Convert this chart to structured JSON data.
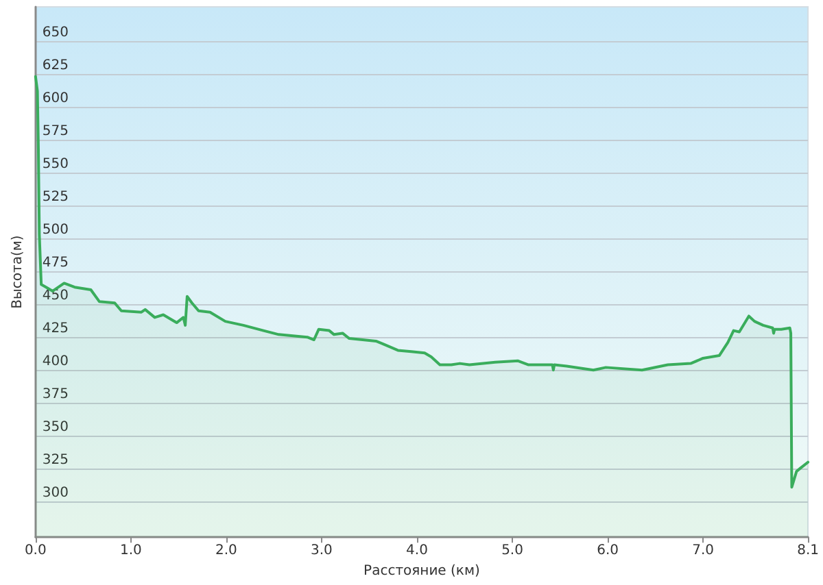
{
  "chart_data": {
    "type": "area",
    "xlabel": "Расстояние (км)",
    "ylabel": "Высота(м)",
    "x": [
      0,
      0.02,
      0.03,
      0.04,
      0.06,
      0.11,
      0.18,
      0.3,
      0.41,
      0.58,
      0.67,
      0.83,
      0.9,
      1.11,
      1.15,
      1.25,
      1.34,
      1.48,
      1.55,
      1.57,
      1.59,
      1.64,
      1.71,
      1.83,
      1.99,
      2.18,
      2.39,
      2.55,
      2.85,
      2.92,
      2.97,
      3.08,
      3.13,
      3.22,
      3.29,
      3.57,
      3.64,
      3.8,
      3.94,
      4.08,
      4.15,
      4.24,
      4.36,
      4.45,
      4.55,
      4.82,
      5.06,
      5.17,
      5.42,
      5.43,
      5.44,
      5.57,
      5.85,
      5.98,
      6.36,
      6.63,
      6.87,
      7,
      7.17,
      7.26,
      7.32,
      7.38,
      7.48,
      7.54,
      7.63,
      7.73,
      7.74,
      7.75,
      7.82,
      7.91,
      7.92,
      7.93,
      7.98,
      8.03,
      8.1
    ],
    "values": [
      623,
      612,
      568,
      503,
      465,
      463,
      460,
      466,
      463,
      461,
      452,
      451,
      445,
      444,
      446,
      440,
      442,
      436,
      440,
      434,
      456,
      451,
      445,
      444,
      437,
      434,
      430,
      427,
      425,
      423,
      431,
      430,
      427,
      428,
      424,
      422,
      420,
      415,
      414,
      413,
      410,
      404,
      404,
      405,
      404,
      406,
      407,
      404,
      404,
      400,
      404,
      403,
      400,
      402,
      400,
      404,
      405,
      409,
      411,
      421,
      430,
      429,
      441,
      437,
      434,
      432,
      428,
      431,
      431,
      432,
      428,
      311,
      323,
      326,
      330
    ],
    "color": "#3aad5c",
    "xlim": [
      0,
      8.1
    ],
    "xticks": [
      {
        "value": 0,
        "label": "0.0"
      },
      {
        "value": 1,
        "label": "1.0"
      },
      {
        "value": 2,
        "label": "2.0"
      },
      {
        "value": 3,
        "label": "3.0"
      },
      {
        "value": 4,
        "label": "4.0"
      },
      {
        "value": 5,
        "label": "5.0"
      },
      {
        "value": 6,
        "label": "6.0"
      },
      {
        "value": 7,
        "label": "7.0"
      },
      {
        "value": 8.1,
        "label": "8.1"
      }
    ],
    "ylim": [
      273,
      676
    ],
    "yticks": [
      300,
      325,
      350,
      375,
      400,
      425,
      450,
      475,
      500,
      525,
      550,
      575,
      600,
      625,
      650
    ],
    "grid": "y"
  }
}
